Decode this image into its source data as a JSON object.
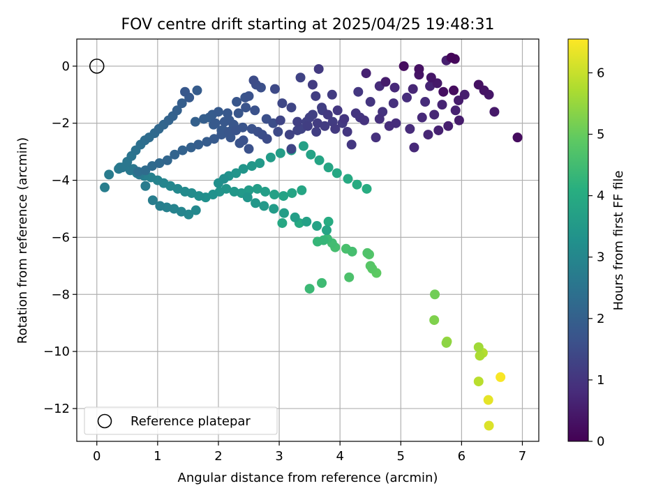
{
  "chart_data": {
    "type": "scatter",
    "title": "FOV centre drift starting at 2025/04/25 19:48:31",
    "xlabel": "Angular distance from reference (arcmin)",
    "ylabel": "Rotation from reference (arcmin)",
    "xlim": [
      -0.33,
      7.27
    ],
    "ylim": [
      -13.15,
      0.95
    ],
    "xticks": [
      0,
      1,
      2,
      3,
      4,
      5,
      6,
      7
    ],
    "yticks": [
      0,
      -2,
      -4,
      -6,
      -8,
      -10,
      -12
    ],
    "xticklabels": [
      "0",
      "1",
      "2",
      "3",
      "4",
      "5",
      "6",
      "7"
    ],
    "yticklabels": [
      "0",
      "−2",
      "−4",
      "−6",
      "−8",
      "−10",
      "−12"
    ],
    "grid": true,
    "colormap": "viridis",
    "colorbar": {
      "label": "Hours from first FF file",
      "range": [
        0,
        6.55
      ],
      "ticks": [
        0,
        1,
        2,
        3,
        4,
        5,
        6
      ],
      "ticklabels": [
        "0",
        "1",
        "2",
        "3",
        "4",
        "5",
        "6"
      ]
    },
    "legend": {
      "location": "lower left",
      "entries": [
        {
          "label": "Reference platepar",
          "marker": "open-circle"
        }
      ]
    },
    "reference_point": {
      "x": 0,
      "y": 0
    },
    "series": [
      {
        "x": [
          5.83,
          5.89,
          5.3,
          5.05,
          5.3,
          5.5,
          5.75,
          4.75,
          4.43,
          5.6,
          5.48,
          5.2,
          4.9,
          4.65,
          5.7,
          5.87,
          6.28,
          6.37,
          6.45,
          6.54,
          6.92,
          5.95,
          6.05,
          5.9,
          5.68,
          5.55,
          5.35,
          5.4,
          5.1,
          4.88,
          4.7,
          4.5,
          4.3,
          4.65,
          4.92,
          5.15,
          5.62,
          5.78,
          5.96,
          5.45,
          5.22,
          4.81,
          4.59,
          4.4,
          4.26,
          4.12,
          3.65,
          3.55,
          3.6,
          3.87,
          3.7,
          3.5,
          3.35,
          3.2,
          3.05,
          2.93,
          3.02,
          3.17,
          3.3,
          3.47,
          3.63,
          3.8,
          3.96,
          4.07,
          3.92,
          3.75,
          3.61,
          3.45,
          3.3,
          3.2,
          3.36,
          3.55,
          3.71,
          3.88,
          4.04,
          4.19,
          4.33,
          2.58,
          2.62,
          2.7,
          2.5,
          2.44,
          2.3,
          2.15,
          2.0,
          1.9,
          1.85,
          1.95,
          2.1,
          2.25,
          2.4,
          2.55,
          2.65,
          2.72,
          2.8,
          2.98,
          2.9,
          2.79,
          2.6,
          2.45,
          2.33,
          2.18,
          2.05,
          2.2,
          2.35,
          2.5,
          2.25,
          2.08,
          1.92,
          1.76,
          1.62,
          1.45,
          1.52,
          1.65,
          1.4,
          1.32,
          1.25,
          1.18,
          1.1,
          1.02,
          0.95,
          0.86,
          0.79,
          0.72,
          0.64,
          0.57,
          0.5,
          0.42,
          0.36,
          0.68,
          0.8,
          0.91,
          1.03,
          1.16,
          1.28,
          1.41,
          1.55,
          1.67,
          1.81,
          1.93,
          2.05,
          2.17,
          2.29,
          2.41,
          0.2,
          0.13,
          0.38,
          0.55,
          0.66,
          0.78,
          0.89,
          1.0,
          1.1,
          1.21,
          1.33,
          1.45,
          1.56,
          1.68,
          1.79,
          1.91,
          2.02,
          2.13,
          2.26,
          2.38,
          2.5,
          2.64,
          2.77,
          2.92,
          3.07,
          3.21,
          3.37,
          0.6,
          0.7,
          0.8,
          0.92,
          1.04,
          1.15,
          1.27,
          1.39,
          1.51,
          1.63,
          2.09,
          2.0,
          2.17,
          2.29,
          2.41,
          2.55,
          2.68,
          2.86,
          3.02,
          3.2,
          3.4,
          3.52,
          3.66,
          3.81,
          3.95,
          4.13,
          4.28,
          4.44,
          2.48,
          2.61,
          2.75,
          2.91,
          3.08,
          3.26,
          3.45,
          3.62,
          3.78,
          3.05,
          3.33,
          3.81,
          3.73,
          3.79,
          3.63,
          3.87,
          3.92,
          4.1,
          4.2,
          4.45,
          4.48,
          4.5,
          4.53,
          4.6,
          4.15,
          3.7,
          3.5,
          5.56,
          5.55,
          5.75,
          5.76,
          6.28,
          6.3,
          6.35,
          6.28,
          6.64,
          6.44,
          6.45
        ]
      }
    ],
    "color_values_hours": [
      0.1,
      0.15,
      0.3,
      0.2,
      0.35,
      0.4,
      0.55,
      0.5,
      0.6,
      0.45,
      0.65,
      0.7,
      0.75,
      0.8,
      0.25,
      0.2,
      0.3,
      0.35,
      0.4,
      0.45,
      0.2,
      0.5,
      0.55,
      0.6,
      0.65,
      0.7,
      0.75,
      0.8,
      0.85,
      0.9,
      0.95,
      1.0,
      1.05,
      0.9,
      0.85,
      0.8,
      0.6,
      0.55,
      0.5,
      0.7,
      0.75,
      0.85,
      0.9,
      0.95,
      1.0,
      1.05,
      1.1,
      1.15,
      1.2,
      1.15,
      1.2,
      1.25,
      1.3,
      1.35,
      1.4,
      1.45,
      1.35,
      1.3,
      1.25,
      1.2,
      1.15,
      1.1,
      1.05,
      1.0,
      1.1,
      1.15,
      1.2,
      1.25,
      1.3,
      1.35,
      1.3,
      1.25,
      1.2,
      1.15,
      1.1,
      1.05,
      1.0,
      1.5,
      1.55,
      1.6,
      1.65,
      1.7,
      1.75,
      1.8,
      1.85,
      1.9,
      1.95,
      1.85,
      1.8,
      1.75,
      1.7,
      1.65,
      1.6,
      1.55,
      1.5,
      1.45,
      1.55,
      1.6,
      1.65,
      1.7,
      1.75,
      1.8,
      1.85,
      1.75,
      1.7,
      1.65,
      1.8,
      1.85,
      1.9,
      1.95,
      2.0,
      1.8,
      1.85,
      1.9,
      1.95,
      2.0,
      2.05,
      2.1,
      2.15,
      2.2,
      2.25,
      2.3,
      2.35,
      2.4,
      2.45,
      2.5,
      2.55,
      2.6,
      2.65,
      2.35,
      2.3,
      2.25,
      2.2,
      2.15,
      2.1,
      2.05,
      2.0,
      1.95,
      1.9,
      1.85,
      1.8,
      1.75,
      1.7,
      1.65,
      2.7,
      2.75,
      2.7,
      2.65,
      2.75,
      2.8,
      2.85,
      2.9,
      2.95,
      3.0,
      3.05,
      3.1,
      3.15,
      3.2,
      3.25,
      3.3,
      3.35,
      3.4,
      3.45,
      3.5,
      3.55,
      3.6,
      3.65,
      3.7,
      3.75,
      3.8,
      3.85,
      2.6,
      2.65,
      2.7,
      2.75,
      2.8,
      2.85,
      2.9,
      2.95,
      3.0,
      3.05,
      3.2,
      3.25,
      3.3,
      3.35,
      3.4,
      3.45,
      3.5,
      3.55,
      3.6,
      3.65,
      3.7,
      3.75,
      3.8,
      3.85,
      3.9,
      3.95,
      4.0,
      4.05,
      3.4,
      3.45,
      3.5,
      3.55,
      3.6,
      3.65,
      3.7,
      3.75,
      3.8,
      3.9,
      3.95,
      4.0,
      4.3,
      4.4,
      4.3,
      4.5,
      4.55,
      4.6,
      4.55,
      4.7,
      4.75,
      4.8,
      4.85,
      4.9,
      4.65,
      4.45,
      4.4,
      5.1,
      5.25,
      5.4,
      5.5,
      5.6,
      5.7,
      5.8,
      5.85,
      6.5,
      6.3,
      6.2
    ],
    "y_values": [
      0.3,
      0.25,
      -0.1,
      0.0,
      -0.3,
      -0.4,
      0.2,
      -0.55,
      -0.25,
      -0.6,
      -0.7,
      -0.8,
      -0.75,
      -0.7,
      -0.9,
      -0.85,
      -0.65,
      -0.85,
      -1.0,
      -1.6,
      -2.5,
      -1.2,
      -1.0,
      -1.55,
      -1.35,
      -1.7,
      -1.8,
      -1.25,
      -1.1,
      -1.3,
      -1.6,
      -1.25,
      -0.9,
      -1.85,
      -2.0,
      -2.2,
      -2.25,
      -2.1,
      -1.9,
      -2.4,
      -2.85,
      -2.1,
      -2.5,
      -1.9,
      -1.65,
      -2.3,
      -0.1,
      -0.65,
      -1.05,
      -1.0,
      -1.45,
      -1.8,
      -0.4,
      -1.45,
      -1.3,
      -0.8,
      -1.9,
      -2.4,
      -1.95,
      -2.1,
      -2.0,
      -1.7,
      -1.55,
      -1.85,
      -2.2,
      -2.1,
      -2.3,
      -1.95,
      -2.25,
      -2.9,
      -2.2,
      -1.7,
      -1.55,
      -1.95,
      -2.0,
      -2.75,
      -1.8,
      -0.5,
      -0.65,
      -0.75,
      -1.05,
      -1.1,
      -1.25,
      -1.65,
      -1.6,
      -1.7,
      -1.8,
      -2.0,
      -1.95,
      -2.05,
      -2.15,
      -2.2,
      -2.3,
      -2.4,
      -2.55,
      -2.3,
      -2.0,
      -1.85,
      -1.55,
      -1.45,
      -1.65,
      -1.9,
      -2.25,
      -2.5,
      -2.7,
      -2.9,
      -2.1,
      -2.25,
      -2.05,
      -1.85,
      -1.95,
      -0.9,
      -1.1,
      -0.85,
      -1.3,
      -1.55,
      -1.75,
      -1.9,
      -2.05,
      -2.2,
      -2.35,
      -2.5,
      -2.6,
      -2.75,
      -2.95,
      -3.15,
      -3.35,
      -3.55,
      -3.6,
      -3.7,
      -3.65,
      -3.5,
      -3.4,
      -3.3,
      -3.1,
      -2.95,
      -2.85,
      -2.75,
      -2.65,
      -2.55,
      -2.4,
      -2.3,
      -2.25,
      -2.6,
      -3.8,
      -4.25,
      -3.55,
      -3.65,
      -3.75,
      -3.85,
      -3.9,
      -4.0,
      -4.1,
      -4.2,
      -4.3,
      -4.4,
      -4.45,
      -4.55,
      -4.6,
      -4.5,
      -4.4,
      -4.3,
      -4.4,
      -4.45,
      -4.35,
      -4.3,
      -4.4,
      -4.5,
      -4.55,
      -4.45,
      -4.35,
      -3.6,
      -3.8,
      -4.2,
      -4.7,
      -4.9,
      -4.95,
      -5.0,
      -5.1,
      -5.2,
      -5.05,
      -3.95,
      -4.1,
      -3.85,
      -3.75,
      -3.6,
      -3.5,
      -3.4,
      -3.2,
      -3.05,
      -2.95,
      -2.8,
      -3.1,
      -3.3,
      -3.55,
      -3.75,
      -3.95,
      -4.15,
      -4.3,
      -4.6,
      -4.8,
      -4.9,
      -5.0,
      -5.15,
      -5.3,
      -5.45,
      -5.6,
      -5.75,
      -5.5,
      -5.5,
      -5.45,
      -6.1,
      -6.05,
      -6.15,
      -6.2,
      -6.35,
      -6.4,
      -6.5,
      -6.55,
      -6.6,
      -7.0,
      -7.1,
      -7.25,
      -7.4,
      -7.6,
      -7.8,
      -8.0,
      -8.9,
      -9.7,
      -9.65,
      -9.85,
      -10.15,
      -10.05,
      -11.05,
      -10.9,
      -11.7,
      -12.6
    ]
  }
}
